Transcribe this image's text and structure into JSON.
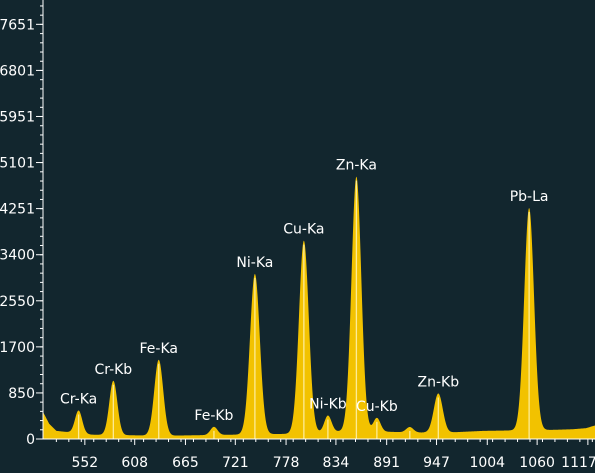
{
  "chart_data": {
    "type": "area",
    "title": "",
    "xlabel": "",
    "ylabel": "",
    "xlim": [
      505,
      1125
    ],
    "ylim": [
      0,
      8100
    ],
    "grid": false,
    "legend": "none",
    "colors": {
      "background": "#12262e",
      "fill": "#f2c200",
      "highlight": "#fff3b0",
      "axis": "#ffffff",
      "text": "#ffffff"
    },
    "y_ticks": [
      0,
      850,
      1700,
      2550,
      3400,
      4251,
      5101,
      5951,
      6801,
      7651
    ],
    "x_ticks": [
      552,
      608,
      665,
      721,
      778,
      834,
      891,
      947,
      1004,
      1060,
      1117
    ],
    "baseline": [
      [
        505,
        500
      ],
      [
        512,
        280
      ],
      [
        520,
        150
      ],
      [
        560,
        80
      ],
      [
        600,
        70
      ],
      [
        640,
        60
      ],
      [
        680,
        70
      ],
      [
        720,
        80
      ],
      [
        760,
        90
      ],
      [
        800,
        100
      ],
      [
        830,
        140
      ],
      [
        880,
        140
      ],
      [
        920,
        120
      ],
      [
        960,
        120
      ],
      [
        1000,
        150
      ],
      [
        1040,
        160
      ],
      [
        1080,
        170
      ],
      [
        1100,
        180
      ],
      [
        1115,
        200
      ],
      [
        1125,
        250
      ]
    ],
    "peaks": [
      {
        "label": "Cr-Ka",
        "x": 545,
        "height": 420,
        "width": 4
      },
      {
        "label": "Cr-Kb",
        "x": 584,
        "height": 1000,
        "width": 4.5
      },
      {
        "label": "Fe-Ka",
        "x": 635,
        "height": 1400,
        "width": 5
      },
      {
        "label": "Fe-Kb",
        "x": 697,
        "height": 150,
        "width": 4
      },
      {
        "label": "Ni-Ka",
        "x": 743,
        "height": 2960,
        "width": 5.5
      },
      {
        "label": "Cu-Ka",
        "x": 798,
        "height": 3560,
        "width": 5.5
      },
      {
        "label": "Ni-Kb",
        "x": 825,
        "height": 300,
        "width": 4
      },
      {
        "label": "Zn-Ka",
        "x": 857,
        "height": 4700,
        "width": 5.5
      },
      {
        "label": "Cu-Kb",
        "x": 880,
        "height": 250,
        "width": 4
      },
      {
        "label": "",
        "x": 917,
        "height": 100,
        "width": 4
      },
      {
        "label": "Zn-Kb",
        "x": 949,
        "height": 720,
        "width": 5
      },
      {
        "label": "Pb-La",
        "x": 1051,
        "height": 4100,
        "width": 5.5
      }
    ]
  }
}
